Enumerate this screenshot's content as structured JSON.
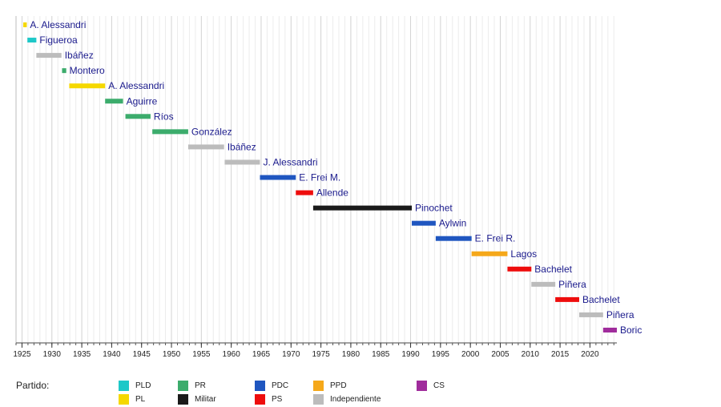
{
  "chart_data": {
    "type": "timeline",
    "title": "",
    "xlabel": "",
    "ylabel": "",
    "xlim": [
      1924,
      2024.5
    ],
    "xticks": [
      1925,
      1930,
      1935,
      1940,
      1945,
      1950,
      1955,
      1960,
      1965,
      1970,
      1975,
      1980,
      1985,
      1990,
      1995,
      2000,
      2005,
      2010,
      2015,
      2020
    ],
    "terms": [
      {
        "label": "A. Alessandri",
        "start": 1925.2,
        "end": 1925.8,
        "party": "PL"
      },
      {
        "label": "Figueroa",
        "start": 1925.9,
        "end": 1927.4,
        "party": "PLD"
      },
      {
        "label": "Ibáñez",
        "start": 1927.4,
        "end": 1931.6,
        "party": "Independiente"
      },
      {
        "label": "Montero",
        "start": 1931.7,
        "end": 1932.4,
        "party": "PR"
      },
      {
        "label": "A. Alessandri",
        "start": 1932.9,
        "end": 1938.9,
        "party": "PL"
      },
      {
        "label": "Aguirre",
        "start": 1938.9,
        "end": 1941.9,
        "party": "PR"
      },
      {
        "label": "Ríos",
        "start": 1942.3,
        "end": 1946.5,
        "party": "PR"
      },
      {
        "label": "González",
        "start": 1946.8,
        "end": 1952.8,
        "party": "PR"
      },
      {
        "label": "Ibáñez",
        "start": 1952.8,
        "end": 1958.8,
        "party": "Independiente"
      },
      {
        "label": "J. Alessandri",
        "start": 1958.9,
        "end": 1964.8,
        "party": "Independiente"
      },
      {
        "label": "E. Frei M.",
        "start": 1964.8,
        "end": 1970.8,
        "party": "PDC"
      },
      {
        "label": "Allende",
        "start": 1970.8,
        "end": 1973.7,
        "party": "PS"
      },
      {
        "label": "Pinochet",
        "start": 1973.7,
        "end": 1990.2,
        "party": "Militar"
      },
      {
        "label": "Aylwin",
        "start": 1990.2,
        "end": 1994.2,
        "party": "PDC"
      },
      {
        "label": "E. Frei R.",
        "start": 1994.2,
        "end": 2000.2,
        "party": "PDC"
      },
      {
        "label": "Lagos",
        "start": 2000.2,
        "end": 2006.2,
        "party": "PPD"
      },
      {
        "label": "Bachelet",
        "start": 2006.2,
        "end": 2010.2,
        "party": "PS"
      },
      {
        "label": "Piñera",
        "start": 2010.2,
        "end": 2014.2,
        "party": "Independiente"
      },
      {
        "label": "Bachelet",
        "start": 2014.2,
        "end": 2018.2,
        "party": "PS"
      },
      {
        "label": "Piñera",
        "start": 2018.2,
        "end": 2022.2,
        "party": "Independiente"
      },
      {
        "label": "Boric",
        "start": 2022.2,
        "end": 2024.5,
        "party": "CS"
      }
    ],
    "legend": {
      "title": "Partido:",
      "items": [
        {
          "party": "PLD",
          "color": "#1ec8c8"
        },
        {
          "party": "PL",
          "color": "#f5d800"
        },
        {
          "party": "PR",
          "color": "#3cac6c"
        },
        {
          "party": "Militar",
          "color": "#1a1a1a"
        },
        {
          "party": "PDC",
          "color": "#1f56c0"
        },
        {
          "party": "PS",
          "color": "#ee0d0d"
        },
        {
          "party": "PPD",
          "color": "#f5a81a"
        },
        {
          "party": "Independiente",
          "color": "#bcbcbc"
        },
        {
          "party": "CS",
          "color": "#a02c9c"
        }
      ]
    }
  }
}
